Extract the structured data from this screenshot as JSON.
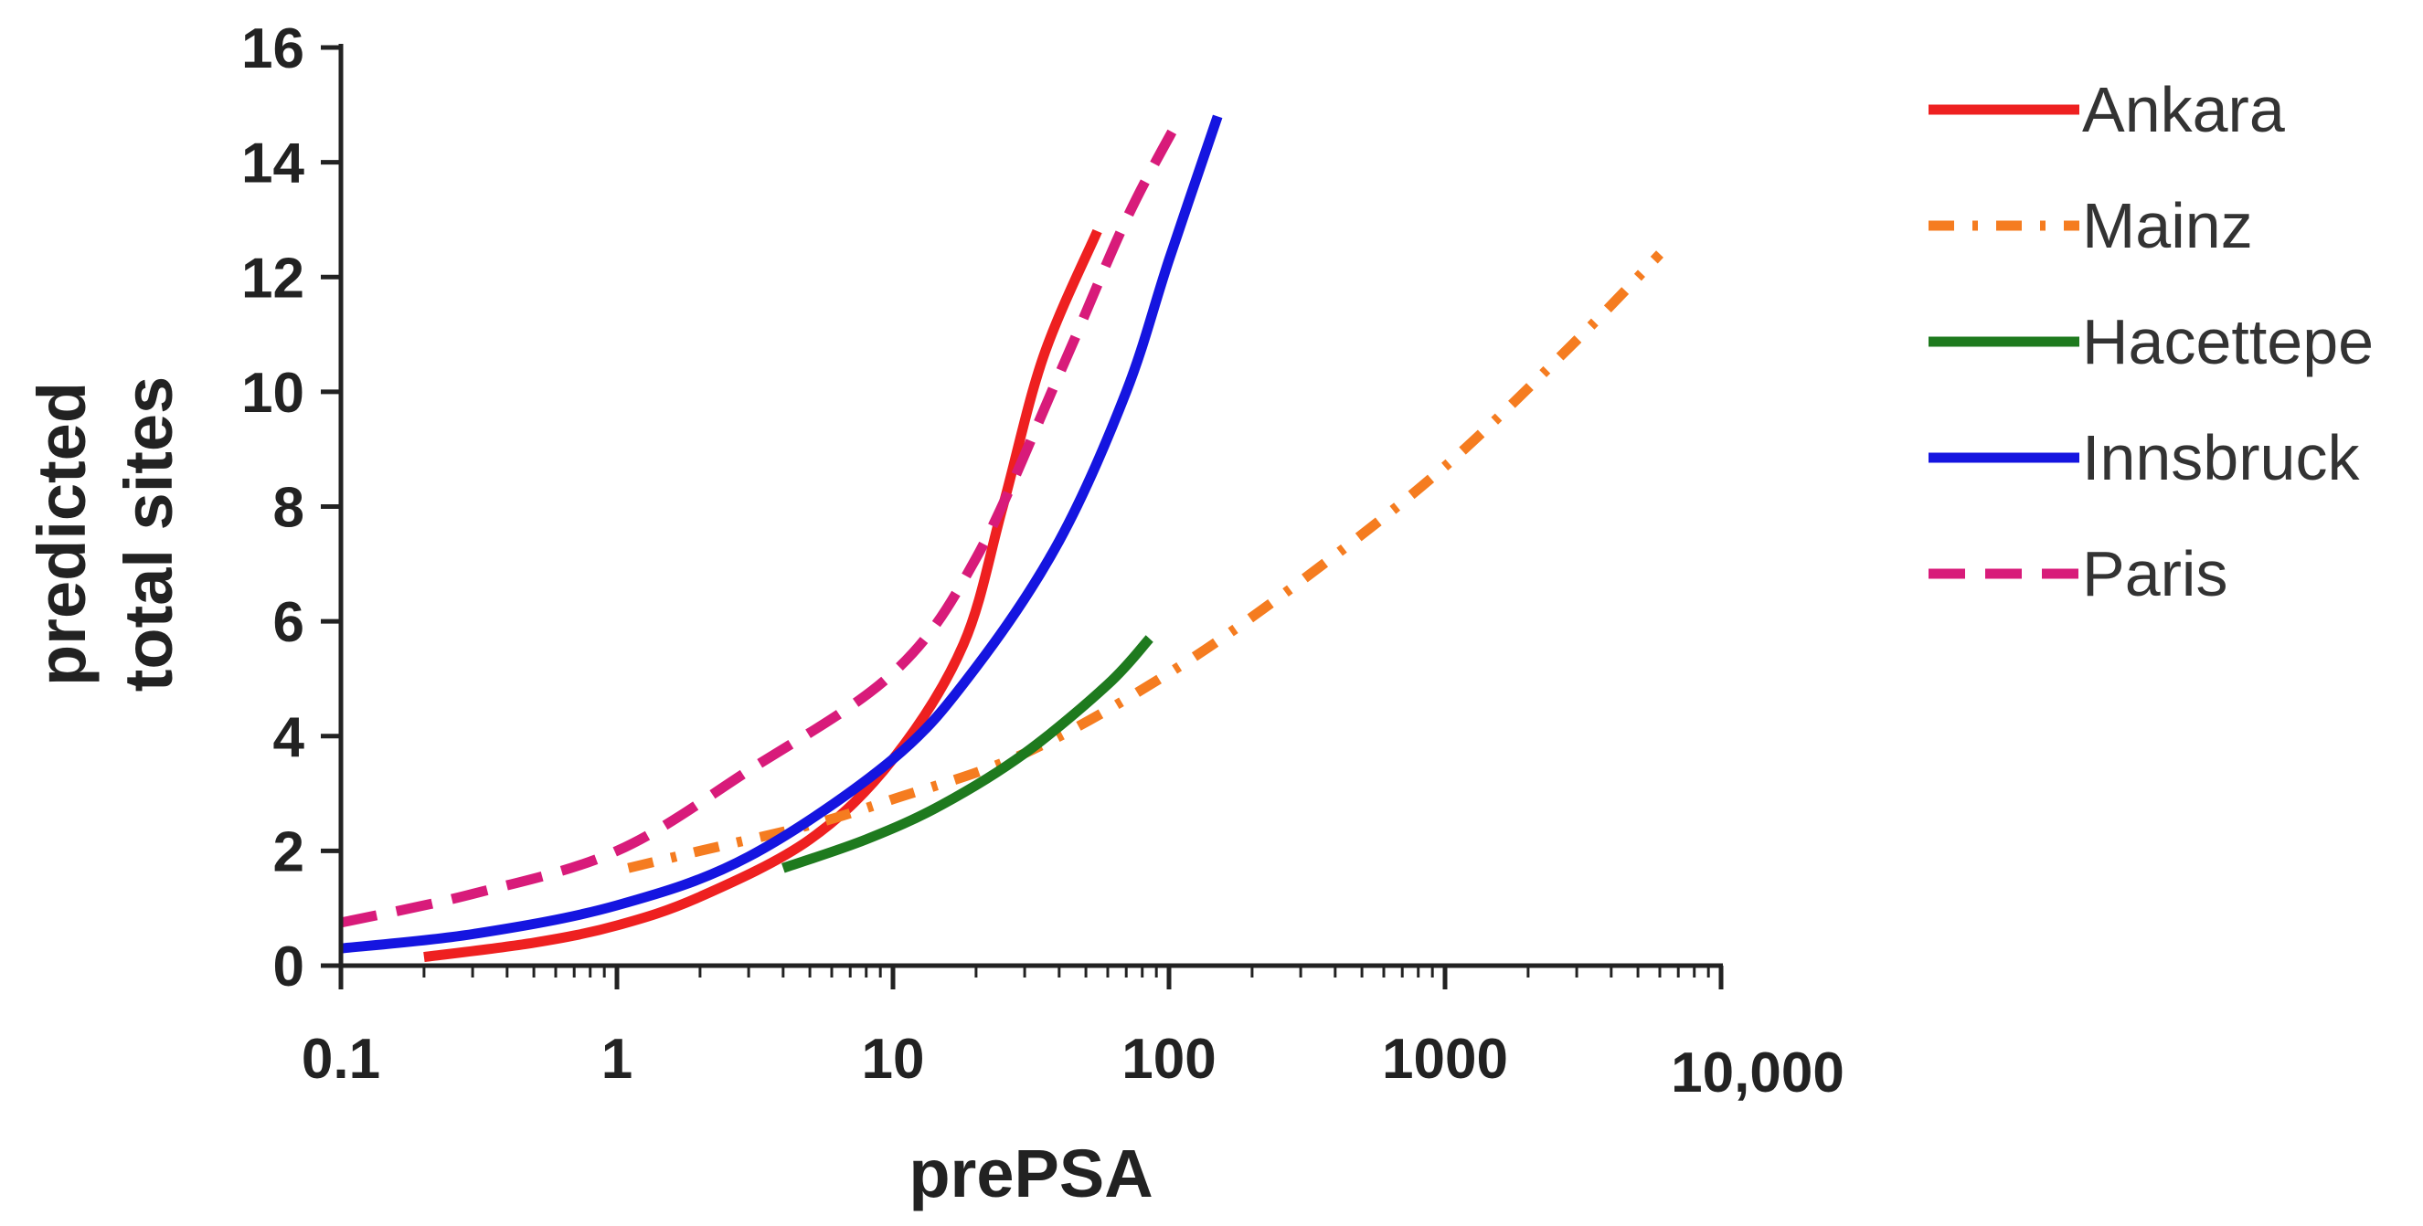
{
  "chart_data": {
    "type": "line",
    "xlabel": "prePSA",
    "ylabel": [
      "predicted",
      "total sites"
    ],
    "xscale": "log",
    "xlim": [
      0.1,
      10000
    ],
    "ylim": [
      0,
      16
    ],
    "x_ticks": [
      {
        "value": 0.1,
        "label": "0.1"
      },
      {
        "value": 1,
        "label": "1"
      },
      {
        "value": 10,
        "label": "10"
      },
      {
        "value": 100,
        "label": "100"
      },
      {
        "value": 1000,
        "label": "1000"
      },
      {
        "value": 10000,
        "label": "10,000"
      }
    ],
    "y_ticks": [
      0,
      2,
      4,
      6,
      8,
      10,
      12,
      14,
      16
    ],
    "grid": false,
    "legend_position": "right",
    "series": [
      {
        "name": "Ankara",
        "color": "#ee2020",
        "style": "solid",
        "points": [
          [
            0.2,
            0.15
          ],
          [
            0.5,
            0.4
          ],
          [
            1,
            0.7
          ],
          [
            2,
            1.2
          ],
          [
            5,
            2.2
          ],
          [
            10,
            3.6
          ],
          [
            18,
            5.6
          ],
          [
            25,
            8.0
          ],
          [
            35,
            10.6
          ],
          [
            55,
            12.8
          ]
        ]
      },
      {
        "name": "Mainz",
        "color": "#f57c20",
        "style": "dashdot",
        "points": [
          [
            1.1,
            1.7
          ],
          [
            2,
            2.0
          ],
          [
            5,
            2.45
          ],
          [
            10,
            2.9
          ],
          [
            30,
            3.7
          ],
          [
            100,
            5.1
          ],
          [
            300,
            6.7
          ],
          [
            1000,
            8.7
          ],
          [
            3000,
            10.9
          ],
          [
            6000,
            12.4
          ]
        ]
      },
      {
        "name": "Hacettepe",
        "color": "#1e7a1e",
        "style": "solid",
        "points": [
          [
            4,
            1.7
          ],
          [
            8,
            2.2
          ],
          [
            15,
            2.8
          ],
          [
            30,
            3.7
          ],
          [
            60,
            4.9
          ],
          [
            85,
            5.7
          ]
        ]
      },
      {
        "name": "Innsbruck",
        "color": "#1515e0",
        "style": "solid",
        "points": [
          [
            0.1,
            0.3
          ],
          [
            0.3,
            0.55
          ],
          [
            1,
            1.05
          ],
          [
            3,
            1.9
          ],
          [
            10,
            3.6
          ],
          [
            20,
            5.2
          ],
          [
            40,
            7.4
          ],
          [
            70,
            10.0
          ],
          [
            100,
            12.3
          ],
          [
            150,
            14.8
          ]
        ]
      },
      {
        "name": "Paris",
        "color": "#d81b7a",
        "style": "dashed",
        "points": [
          [
            0.1,
            0.75
          ],
          [
            0.3,
            1.25
          ],
          [
            1,
            2.0
          ],
          [
            3,
            3.4
          ],
          [
            10,
            5.1
          ],
          [
            20,
            7.1
          ],
          [
            40,
            10.3
          ],
          [
            70,
            13.0
          ],
          [
            110,
            14.8
          ]
        ]
      }
    ]
  }
}
